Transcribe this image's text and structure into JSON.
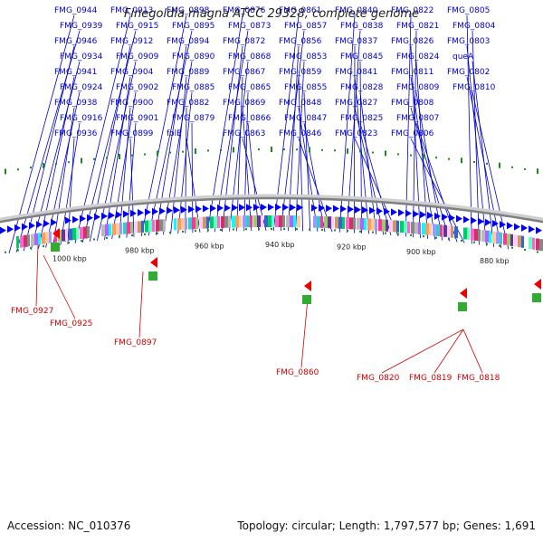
{
  "title": "Finegoldia magna ATCC 29328, complete genome",
  "footer": {
    "accession": "Accession: NC_010376",
    "summary": "Topology: circular; Length: 1,797,577 bp; Genes: 1,691"
  },
  "colors": {
    "gene_label": "#0000cc",
    "rna_label": "#cc0000",
    "backbone": "#7f7f7f",
    "forward_arrow": "#0000ee",
    "rna_arrow": "#ee0000",
    "gc_tick": "#1a8a1a"
  },
  "scale_labels": [
    "1000 kbp",
    "980 kbp",
    "960 kbp",
    "940 kbp",
    "920 kbp",
    "900 kbp",
    "880 kbp"
  ],
  "gene_labels": [
    "FMG_0944",
    "FMG_0939",
    "FMG_0946",
    "FMG_0934",
    "FMG_0941",
    "FMG_0924",
    "FMG_0938",
    "FMG_0916",
    "FMG_0936",
    "FMG_0913",
    "FMG_0915",
    "FMG_0912",
    "FMG_0909",
    "FMG_0904",
    "FMG_0902",
    "FMG_0900",
    "FMG_0901",
    "FMG_0899",
    "FMG_0898",
    "FMG_0895",
    "FMG_0894",
    "FMG_0890",
    "FMG_0889",
    "FMG_0885",
    "FMG_0882",
    "FMG_0879",
    "folE",
    "FMG_0876",
    "FMG_0873",
    "FMG_0872",
    "FMG_0868",
    "FMG_0867",
    "FMG_0865",
    "FMG_0869",
    "FMG_0866",
    "FMG_0863",
    "FMG_0861",
    "FMG_0857",
    "FMG_0856",
    "FMG_0853",
    "FMG_0859",
    "FMG_0855",
    "FMG_0848",
    "FMG_0847",
    "FMG_0846",
    "FMG_0840",
    "FMG_0838",
    "FMG_0837",
    "FMG_0845",
    "FMG_0841",
    "FMG_0828",
    "FMG_0827",
    "FMG_0825",
    "FMG_0823",
    "FMG_0822",
    "FMG_0821",
    "FMG_0826",
    "FMG_0824",
    "FMG_0811",
    "FMG_0809",
    "FMG_0808",
    "FMG_0807",
    "FMG_0806",
    "FMG_0805",
    "FMG_0804",
    "FMG_0803",
    "queA",
    "FMG_0802",
    "FMG_0810"
  ],
  "rna_labels": [
    "FMG_0927",
    "FMG_0925",
    "FMG_0897",
    "FMG_0860",
    "FMG_0820",
    "FMG_0819",
    "FMG_0818"
  ]
}
